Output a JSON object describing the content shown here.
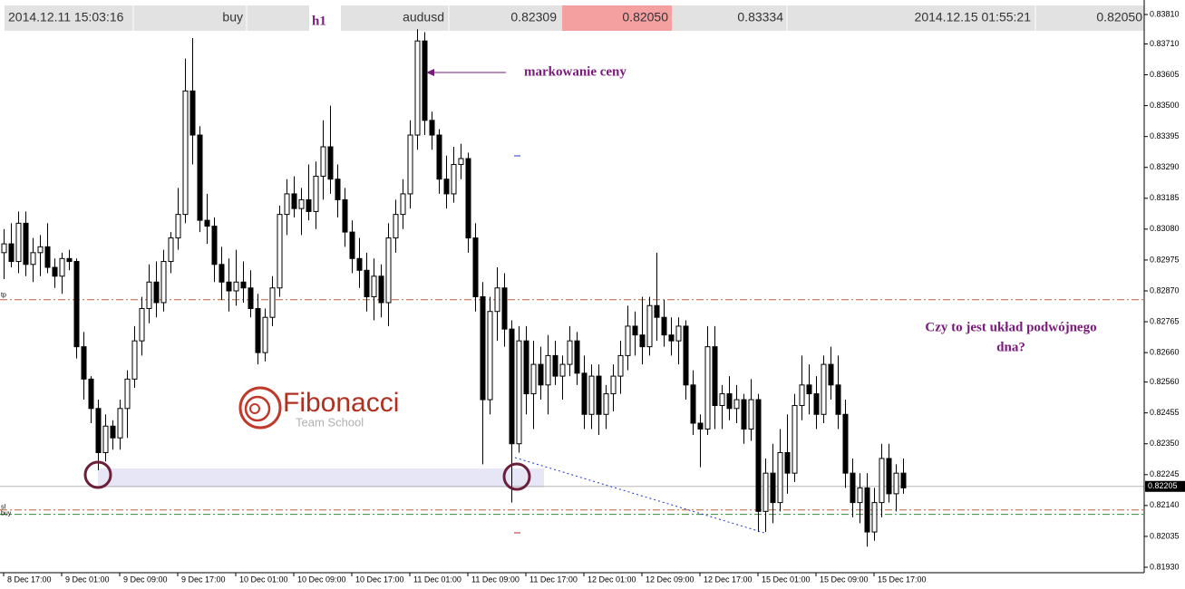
{
  "header": {
    "cells": [
      "2014.12.11 15:03:16",
      "buy",
      "h1",
      "audusd",
      "0.82309",
      "0.82050",
      "0.83334",
      "2014.12.15 01:55:21",
      "0.82050"
    ]
  },
  "chart_data": {
    "type": "candlestick",
    "up_color": "#ffffff",
    "down_color": "#000000",
    "xlim": [
      -0.5,
      157.25
    ],
    "ylim": [
      0.8193,
      0.8381
    ],
    "yticks": [
      {
        "value": 0.8381,
        "label": "0.83810"
      },
      {
        "value": 0.8371,
        "label": "0.83710"
      },
      {
        "value": 0.83605,
        "label": "0.83605"
      },
      {
        "value": 0.835,
        "label": "0.83500"
      },
      {
        "value": 0.83395,
        "label": "0.83395"
      },
      {
        "value": 0.8329,
        "label": "0.83290"
      },
      {
        "value": 0.83185,
        "label": "0.83185"
      },
      {
        "value": 0.8308,
        "label": "0.83080"
      },
      {
        "value": 0.82975,
        "label": "0.82975"
      },
      {
        "value": 0.8287,
        "label": "0.82870"
      },
      {
        "value": 0.82765,
        "label": "0.82765"
      },
      {
        "value": 0.8266,
        "label": "0.82660"
      },
      {
        "value": 0.8256,
        "label": "0.82560"
      },
      {
        "value": 0.82455,
        "label": "0.82455"
      },
      {
        "value": 0.8235,
        "label": "0.82350"
      },
      {
        "value": 0.82245,
        "label": "0.82245"
      },
      {
        "value": 0.8214,
        "label": "0.82140"
      },
      {
        "value": 0.82035,
        "label": "0.82035"
      },
      {
        "value": 0.8193,
        "label": "0.81930"
      }
    ],
    "xticks": [
      {
        "value": 0,
        "label": "8 Dec 17:00"
      },
      {
        "value": 8,
        "label": "9 Dec 01:00"
      },
      {
        "value": 16,
        "label": "9 Dec 09:00"
      },
      {
        "value": 24,
        "label": "9 Dec 17:00"
      },
      {
        "value": 32,
        "label": "10 Dec 01:00"
      },
      {
        "value": 40,
        "label": "10 Dec 09:00"
      },
      {
        "value": 48,
        "label": "10 Dec 17:00"
      },
      {
        "value": 56,
        "label": "11 Dec 01:00"
      },
      {
        "value": 64,
        "label": "11 Dec 09:00"
      },
      {
        "value": 72,
        "label": "11 Dec 17:00"
      },
      {
        "value": 80,
        "label": "12 Dec 01:00"
      },
      {
        "value": 88,
        "label": "12 Dec 09:00"
      },
      {
        "value": 96,
        "label": "12 Dec 17:00"
      },
      {
        "value": 104,
        "label": "15 Dec 01:00"
      },
      {
        "value": 112,
        "label": "15 Dec 09:00"
      },
      {
        "value": 120,
        "label": "15 Dec 17:00"
      }
    ],
    "current_price": {
      "value": 0.82205,
      "label": "0.82205"
    },
    "levels": [
      {
        "name": "tp",
        "value": 0.8284,
        "color": "#c0603a"
      },
      {
        "name": "sl",
        "value": 0.82125,
        "color": "#c0603a"
      },
      {
        "name": "buy",
        "value": 0.8211,
        "color": "#2e8b2e"
      }
    ],
    "annotations": {
      "arrow_text": "markowanie ceny",
      "question": [
        "Czy to jest układ podwójnego",
        "dna?"
      ]
    },
    "logo": {
      "title": "Fibonacci",
      "subtitle": "Team School"
    },
    "ohlc": [
      [
        0.83,
        0.8308,
        0.8291,
        0.8303
      ],
      [
        0.8303,
        0.831,
        0.8295,
        0.8297
      ],
      [
        0.8297,
        0.8314,
        0.8293,
        0.831
      ],
      [
        0.831,
        0.8314,
        0.8292,
        0.8296
      ],
      [
        0.8296,
        0.8305,
        0.829,
        0.83
      ],
      [
        0.83,
        0.8306,
        0.8292,
        0.8302
      ],
      [
        0.8302,
        0.831,
        0.8293,
        0.8295
      ],
      [
        0.8295,
        0.8298,
        0.8288,
        0.8292
      ],
      [
        0.8292,
        0.83,
        0.8286,
        0.8298
      ],
      [
        0.8298,
        0.8301,
        0.8294,
        0.8297
      ],
      [
        0.8297,
        0.8298,
        0.8264,
        0.8268
      ],
      [
        0.8268,
        0.8273,
        0.825,
        0.8257
      ],
      [
        0.8257,
        0.8258,
        0.8242,
        0.8247
      ],
      [
        0.8247,
        0.825,
        0.8226,
        0.8232
      ],
      [
        0.8232,
        0.8245,
        0.8229,
        0.8241
      ],
      [
        0.8241,
        0.8243,
        0.8233,
        0.8237
      ],
      [
        0.8237,
        0.825,
        0.8233,
        0.8247
      ],
      [
        0.8247,
        0.826,
        0.8237,
        0.8257
      ],
      [
        0.8257,
        0.8275,
        0.8254,
        0.827
      ],
      [
        0.827,
        0.8285,
        0.8265,
        0.8281
      ],
      [
        0.8281,
        0.8296,
        0.8276,
        0.829
      ],
      [
        0.829,
        0.8297,
        0.8278,
        0.8283
      ],
      [
        0.8283,
        0.8301,
        0.828,
        0.8297
      ],
      [
        0.8297,
        0.8307,
        0.8293,
        0.8305
      ],
      [
        0.8305,
        0.8322,
        0.8301,
        0.8313
      ],
      [
        0.8313,
        0.8366,
        0.831,
        0.8355
      ],
      [
        0.8355,
        0.8373,
        0.833,
        0.834
      ],
      [
        0.834,
        0.8343,
        0.8307,
        0.8311
      ],
      [
        0.8311,
        0.832,
        0.8303,
        0.8309
      ],
      [
        0.8309,
        0.8312,
        0.829,
        0.8296
      ],
      [
        0.8296,
        0.8302,
        0.8284,
        0.829
      ],
      [
        0.829,
        0.8298,
        0.828,
        0.8287
      ],
      [
        0.8287,
        0.8301,
        0.8282,
        0.829
      ],
      [
        0.829,
        0.8297,
        0.8283,
        0.8288
      ],
      [
        0.8288,
        0.8294,
        0.8278,
        0.8281
      ],
      [
        0.8281,
        0.8286,
        0.8262,
        0.8266
      ],
      [
        0.8266,
        0.8281,
        0.8263,
        0.8278
      ],
      [
        0.8278,
        0.8292,
        0.8275,
        0.8288
      ],
      [
        0.8288,
        0.8316,
        0.8285,
        0.8313
      ],
      [
        0.8313,
        0.8325,
        0.8306,
        0.832
      ],
      [
        0.832,
        0.8326,
        0.8312,
        0.8315
      ],
      [
        0.8315,
        0.8322,
        0.8306,
        0.8318
      ],
      [
        0.8318,
        0.833,
        0.8311,
        0.8314
      ],
      [
        0.8314,
        0.8331,
        0.8308,
        0.8326
      ],
      [
        0.8326,
        0.8345,
        0.8318,
        0.8336
      ],
      [
        0.8336,
        0.835,
        0.832,
        0.8325
      ],
      [
        0.8325,
        0.833,
        0.8312,
        0.8318
      ],
      [
        0.8318,
        0.8322,
        0.8302,
        0.8307
      ],
      [
        0.8307,
        0.8311,
        0.8293,
        0.8298
      ],
      [
        0.8298,
        0.8305,
        0.8288,
        0.8294
      ],
      [
        0.8294,
        0.83,
        0.828,
        0.8285
      ],
      [
        0.8285,
        0.8298,
        0.8277,
        0.8292
      ],
      [
        0.8292,
        0.8296,
        0.8278,
        0.8283
      ],
      [
        0.8283,
        0.831,
        0.8275,
        0.8305
      ],
      [
        0.8305,
        0.8318,
        0.83,
        0.8313
      ],
      [
        0.8313,
        0.8325,
        0.8308,
        0.832
      ],
      [
        0.832,
        0.8345,
        0.8315,
        0.834
      ],
      [
        0.834,
        0.8376,
        0.8335,
        0.8372
      ],
      [
        0.8372,
        0.8375,
        0.834,
        0.8345
      ],
      [
        0.8345,
        0.8348,
        0.8335,
        0.834
      ],
      [
        0.834,
        0.8342,
        0.832,
        0.8325
      ],
      [
        0.8325,
        0.8333,
        0.8315,
        0.832
      ],
      [
        0.832,
        0.8336,
        0.8317,
        0.833
      ],
      [
        0.833,
        0.8337,
        0.8325,
        0.8332
      ],
      [
        0.8332,
        0.8334,
        0.83,
        0.8305
      ],
      [
        0.8305,
        0.831,
        0.828,
        0.8285
      ],
      [
        0.8285,
        0.829,
        0.8228,
        0.825
      ],
      [
        0.825,
        0.8285,
        0.8245,
        0.828
      ],
      [
        0.828,
        0.8295,
        0.827,
        0.8288
      ],
      [
        0.8288,
        0.8293,
        0.8268,
        0.8274
      ],
      [
        0.8274,
        0.8277,
        0.8215,
        0.8235
      ],
      [
        0.8235,
        0.8275,
        0.8232,
        0.827
      ],
      [
        0.827,
        0.8275,
        0.8245,
        0.8252
      ],
      [
        0.8252,
        0.827,
        0.824,
        0.8262
      ],
      [
        0.8262,
        0.8268,
        0.825,
        0.8255
      ],
      [
        0.8255,
        0.8272,
        0.8245,
        0.8265
      ],
      [
        0.8265,
        0.827,
        0.8255,
        0.8258
      ],
      [
        0.8258,
        0.8265,
        0.825,
        0.8262
      ],
      [
        0.8262,
        0.8275,
        0.8258,
        0.827
      ],
      [
        0.827,
        0.8273,
        0.8255,
        0.8259
      ],
      [
        0.8259,
        0.8265,
        0.824,
        0.8245
      ],
      [
        0.8245,
        0.8262,
        0.824,
        0.8258
      ],
      [
        0.8258,
        0.8262,
        0.8238,
        0.8245
      ],
      [
        0.8245,
        0.8255,
        0.824,
        0.8252
      ],
      [
        0.8252,
        0.8262,
        0.8246,
        0.8258
      ],
      [
        0.8258,
        0.827,
        0.8252,
        0.8265
      ],
      [
        0.8265,
        0.8282,
        0.826,
        0.8275
      ],
      [
        0.8275,
        0.828,
        0.8265,
        0.8272
      ],
      [
        0.8272,
        0.8285,
        0.8262,
        0.8268
      ],
      [
        0.8268,
        0.8285,
        0.8265,
        0.8282
      ],
      [
        0.8282,
        0.83,
        0.827,
        0.8278
      ],
      [
        0.8278,
        0.8284,
        0.8268,
        0.8272
      ],
      [
        0.8272,
        0.8278,
        0.8265,
        0.827
      ],
      [
        0.827,
        0.8278,
        0.8262,
        0.8275
      ],
      [
        0.8275,
        0.8277,
        0.825,
        0.8255
      ],
      [
        0.8255,
        0.826,
        0.8238,
        0.8242
      ],
      [
        0.8242,
        0.8245,
        0.8227,
        0.824
      ],
      [
        0.824,
        0.8275,
        0.8238,
        0.8268
      ],
      [
        0.8268,
        0.8275,
        0.824,
        0.8248
      ],
      [
        0.8248,
        0.8255,
        0.824,
        0.8252
      ],
      [
        0.8252,
        0.8258,
        0.8243,
        0.8247
      ],
      [
        0.8247,
        0.8255,
        0.8242,
        0.825
      ],
      [
        0.825,
        0.8252,
        0.8235,
        0.824
      ],
      [
        0.824,
        0.8257,
        0.8236,
        0.825
      ],
      [
        0.825,
        0.8252,
        0.8205,
        0.8212
      ],
      [
        0.8212,
        0.823,
        0.8205,
        0.8225
      ],
      [
        0.8225,
        0.8235,
        0.8208,
        0.8215
      ],
      [
        0.8215,
        0.824,
        0.8212,
        0.8232
      ],
      [
        0.8232,
        0.8245,
        0.8218,
        0.8225
      ],
      [
        0.8225,
        0.8252,
        0.8222,
        0.8248
      ],
      [
        0.8248,
        0.8265,
        0.8243,
        0.8255
      ],
      [
        0.8255,
        0.8262,
        0.8245,
        0.8252
      ],
      [
        0.8252,
        0.8258,
        0.824,
        0.8245
      ],
      [
        0.8245,
        0.8265,
        0.8242,
        0.8262
      ],
      [
        0.8262,
        0.8268,
        0.825,
        0.8255
      ],
      [
        0.8255,
        0.8265,
        0.824,
        0.8245
      ],
      [
        0.8245,
        0.825,
        0.822,
        0.8225
      ],
      [
        0.8225,
        0.823,
        0.821,
        0.8215
      ],
      [
        0.8215,
        0.8225,
        0.8208,
        0.822
      ],
      [
        0.822,
        0.8225,
        0.82,
        0.8205
      ],
      [
        0.8205,
        0.822,
        0.8202,
        0.8215
      ],
      [
        0.8215,
        0.8235,
        0.821,
        0.823
      ],
      [
        0.823,
        0.8235,
        0.8215,
        0.8218
      ],
      [
        0.8218,
        0.8228,
        0.8212,
        0.8225
      ],
      [
        0.8225,
        0.823,
        0.8218,
        0.822
      ]
    ]
  }
}
